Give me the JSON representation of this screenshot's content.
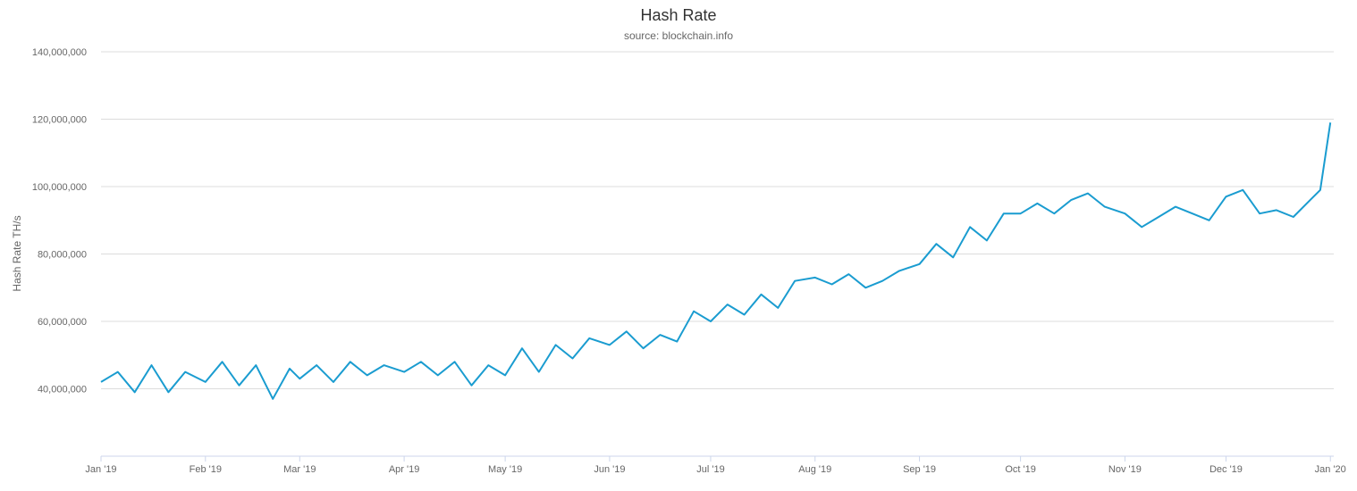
{
  "colors": {
    "line": "#1a9cd0",
    "grid": "#dcdcdc",
    "axis": "#ccd6eb",
    "text": "#666666",
    "title": "#333333"
  },
  "chart_data": {
    "type": "line",
    "title": "Hash Rate",
    "subtitle": "source: blockchain.info",
    "ylabel": "Hash Rate TH/s",
    "xlabel": "",
    "grid": true,
    "legend": "none",
    "ylim": [
      20000000,
      140000000
    ],
    "yticks": [
      40000000,
      60000000,
      80000000,
      100000000,
      120000000,
      140000000
    ],
    "ytick_labels": [
      "40,000,000",
      "60,000,000",
      "80,000,000",
      "100,000,000",
      "120,000,000",
      "140,000,000"
    ],
    "xlim": [
      "2019-01-01",
      "2020-01-02"
    ],
    "xticks": [
      "2019-01-01",
      "2019-02-01",
      "2019-03-01",
      "2019-04-01",
      "2019-05-01",
      "2019-06-01",
      "2019-07-01",
      "2019-08-01",
      "2019-09-01",
      "2019-10-01",
      "2019-11-01",
      "2019-12-01",
      "2020-01-01"
    ],
    "xtick_labels": [
      "Jan '19",
      "Feb '19",
      "Mar '19",
      "Apr '19",
      "May '19",
      "Jun '19",
      "Jul '19",
      "Aug '19",
      "Sep '19",
      "Oct '19",
      "Nov '19",
      "Dec '19",
      "Jan '20"
    ],
    "series": [
      {
        "x": [
          "2019-01-01",
          "2019-01-06",
          "2019-01-11",
          "2019-01-16",
          "2019-01-21",
          "2019-01-26",
          "2019-02-01",
          "2019-02-06",
          "2019-02-11",
          "2019-02-16",
          "2019-02-21",
          "2019-02-26",
          "2019-03-01",
          "2019-03-06",
          "2019-03-11",
          "2019-03-16",
          "2019-03-21",
          "2019-03-26",
          "2019-04-01",
          "2019-04-06",
          "2019-04-11",
          "2019-04-16",
          "2019-04-21",
          "2019-04-26",
          "2019-05-01",
          "2019-05-06",
          "2019-05-11",
          "2019-05-16",
          "2019-05-21",
          "2019-05-26",
          "2019-06-01",
          "2019-06-06",
          "2019-06-11",
          "2019-06-16",
          "2019-06-21",
          "2019-06-26",
          "2019-07-01",
          "2019-07-06",
          "2019-07-11",
          "2019-07-16",
          "2019-07-21",
          "2019-07-26",
          "2019-08-01",
          "2019-08-06",
          "2019-08-11",
          "2019-08-16",
          "2019-08-21",
          "2019-08-26",
          "2019-09-01",
          "2019-09-06",
          "2019-09-11",
          "2019-09-16",
          "2019-09-21",
          "2019-09-26",
          "2019-10-01",
          "2019-10-06",
          "2019-10-11",
          "2019-10-16",
          "2019-10-21",
          "2019-10-26",
          "2019-11-01",
          "2019-11-06",
          "2019-11-11",
          "2019-11-16",
          "2019-11-21",
          "2019-11-26",
          "2019-12-01",
          "2019-12-06",
          "2019-12-11",
          "2019-12-16",
          "2019-12-21",
          "2019-12-26",
          "2019-12-29",
          "2020-01-01"
        ],
        "values": [
          42000000,
          45000000,
          39000000,
          47000000,
          39000000,
          45000000,
          42000000,
          48000000,
          41000000,
          47000000,
          37000000,
          46000000,
          43000000,
          47000000,
          42000000,
          48000000,
          44000000,
          47000000,
          45000000,
          48000000,
          44000000,
          48000000,
          41000000,
          47000000,
          44000000,
          52000000,
          45000000,
          53000000,
          49000000,
          55000000,
          53000000,
          57000000,
          52000000,
          56000000,
          54000000,
          63000000,
          60000000,
          65000000,
          62000000,
          68000000,
          64000000,
          72000000,
          73000000,
          71000000,
          74000000,
          70000000,
          72000000,
          75000000,
          77000000,
          83000000,
          79000000,
          88000000,
          84000000,
          92000000,
          92000000,
          95000000,
          92000000,
          96000000,
          98000000,
          94000000,
          92000000,
          88000000,
          91000000,
          94000000,
          92000000,
          90000000,
          97000000,
          99000000,
          92000000,
          93000000,
          91000000,
          96000000,
          99000000,
          119000000
        ]
      }
    ]
  }
}
